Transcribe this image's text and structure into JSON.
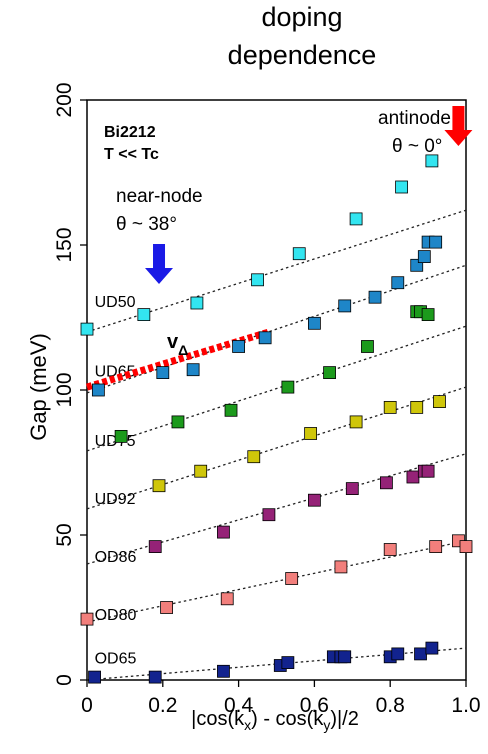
{
  "chart_data": {
    "type": "scatter",
    "title_lines": [
      "doping",
      "dependence"
    ],
    "xlabel": "|cos(k_x) - cos(k_y)|/2",
    "xlabel_parts": {
      "a": "|cos(k",
      "sub1": "x",
      "b": ") - cos(k",
      "sub2": "y",
      "c": ")|/2"
    },
    "ylabel": "Gap (meV)",
    "xlim": [
      0,
      1.0
    ],
    "ylim": [
      0,
      200
    ],
    "xticks": [
      {
        "value": 0,
        "label": "0"
      },
      {
        "value": 0.2,
        "label": "0.2"
      },
      {
        "value": 0.4,
        "label": "0.4"
      },
      {
        "value": 0.6,
        "label": "0.6"
      },
      {
        "value": 0.8,
        "label": "0.8"
      },
      {
        "value": 1.0,
        "label": "1.0"
      }
    ],
    "yticks": [
      {
        "value": 0,
        "label": "0"
      },
      {
        "value": 50,
        "label": "50"
      },
      {
        "value": 100,
        "label": "100"
      },
      {
        "value": 150,
        "label": "150"
      },
      {
        "value": 200,
        "label": "200"
      }
    ],
    "series": [
      {
        "name": "UD50",
        "color": "#33e5f0",
        "label_x": 0.02,
        "label_y": 128,
        "fit": {
          "intercept": 120,
          "slope": 42
        },
        "points": [
          [
            0.0,
            121
          ],
          [
            0.15,
            126
          ],
          [
            0.29,
            130
          ],
          [
            0.45,
            138
          ],
          [
            0.56,
            147
          ],
          [
            0.71,
            159
          ],
          [
            0.83,
            170
          ],
          [
            0.91,
            179
          ]
        ]
      },
      {
        "name": "UD65",
        "color": "#1e86c8",
        "label_x": 0.02,
        "label_y": 104,
        "fit": {
          "intercept": 99,
          "slope": 44
        },
        "points": [
          [
            0.03,
            100
          ],
          [
            0.2,
            106
          ],
          [
            0.28,
            107
          ],
          [
            0.4,
            115
          ],
          [
            0.47,
            118
          ],
          [
            0.6,
            123
          ],
          [
            0.68,
            129
          ],
          [
            0.76,
            132
          ],
          [
            0.82,
            137
          ],
          [
            0.87,
            143
          ],
          [
            0.89,
            146
          ],
          [
            0.9,
            151
          ],
          [
            0.92,
            151
          ]
        ]
      },
      {
        "name": "UD75",
        "color": "#1c9a1c",
        "label_x": 0.02,
        "label_y": 80,
        "fit": {
          "intercept": 79,
          "slope": 43
        },
        "points": [
          [
            0.09,
            84
          ],
          [
            0.24,
            89
          ],
          [
            0.38,
            93
          ],
          [
            0.53,
            101
          ],
          [
            0.64,
            106
          ],
          [
            0.74,
            115
          ],
          [
            0.87,
            127
          ],
          [
            0.88,
            127
          ],
          [
            0.9,
            126
          ]
        ]
      },
      {
        "name": "UD92",
        "color": "#cfc60a",
        "label_x": 0.02,
        "label_y": 60,
        "fit": {
          "intercept": 59,
          "slope": 42
        },
        "points": [
          [
            0.19,
            67
          ],
          [
            0.3,
            72
          ],
          [
            0.44,
            77
          ],
          [
            0.59,
            85
          ],
          [
            0.71,
            89
          ],
          [
            0.8,
            94
          ],
          [
            0.87,
            94
          ],
          [
            0.93,
            96
          ]
        ]
      },
      {
        "name": "OD86",
        "color": "#952277",
        "label_x": 0.02,
        "label_y": 40,
        "fit": {
          "intercept": 40,
          "slope": 38
        },
        "points": [
          [
            0.18,
            46
          ],
          [
            0.36,
            51
          ],
          [
            0.48,
            57
          ],
          [
            0.6,
            62
          ],
          [
            0.7,
            66
          ],
          [
            0.79,
            68
          ],
          [
            0.86,
            70
          ],
          [
            0.89,
            72
          ],
          [
            0.9,
            72
          ]
        ]
      },
      {
        "name": "OD80",
        "color": "#f27f7c",
        "label_x": 0.02,
        "label_y": 20,
        "fit": {
          "intercept": 20,
          "slope": 28
        },
        "points": [
          [
            0.0,
            21
          ],
          [
            0.21,
            25
          ],
          [
            0.37,
            28
          ],
          [
            0.54,
            35
          ],
          [
            0.67,
            39
          ],
          [
            0.8,
            45
          ],
          [
            0.92,
            46
          ],
          [
            0.98,
            48
          ],
          [
            1.0,
            46
          ]
        ]
      },
      {
        "name": "OD65",
        "color": "#12238e",
        "label_x": 0.02,
        "label_y": 5,
        "fit": {
          "intercept": 0,
          "slope": 11
        },
        "points": [
          [
            0.02,
            1
          ],
          [
            0.18,
            1
          ],
          [
            0.36,
            3
          ],
          [
            0.51,
            5
          ],
          [
            0.53,
            6
          ],
          [
            0.65,
            8
          ],
          [
            0.67,
            8
          ],
          [
            0.68,
            8
          ],
          [
            0.8,
            8
          ],
          [
            0.82,
            9
          ],
          [
            0.88,
            9
          ],
          [
            0.91,
            11
          ]
        ]
      }
    ],
    "annotations": {
      "sample": {
        "line1": "Bi2212",
        "line2": "T << Tc"
      },
      "near_node": {
        "label": "near-node",
        "angle": "θ ~ 38°",
        "color": "#1a1ae6",
        "arrow_x": 0.19
      },
      "antinode": {
        "label": "antinode",
        "angle": "θ ~ 0°",
        "color": "#ff0000",
        "arrow_x": 0.98
      },
      "velocity": {
        "symbol": "v",
        "subscript": "Δ",
        "color": "#ff0000",
        "line": {
          "x0": 0,
          "y0": 101,
          "x1": 0.48,
          "y1": 120
        }
      }
    }
  }
}
